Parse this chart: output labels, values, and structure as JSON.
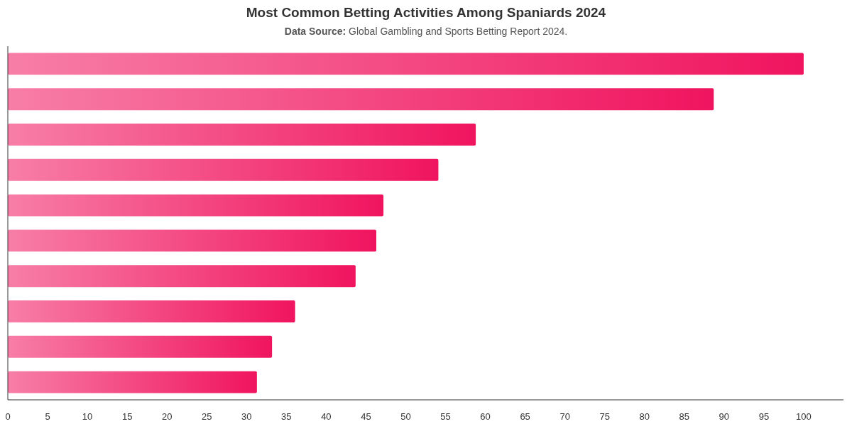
{
  "chart_data": {
    "type": "bar",
    "orientation": "horizontal",
    "title": "Most Common Betting Activities Among Spaniards 2024",
    "subtitle": "Data Source: Global Gambling and Sports Betting Report 2024.",
    "categories": [
      null,
      null,
      null,
      null,
      null,
      null,
      null,
      null,
      null,
      null
    ],
    "values": [
      100,
      88.7,
      58.8,
      54.1,
      47.2,
      46.3,
      43.7,
      36.1,
      33.2,
      31.3
    ],
    "color": "#f0145f",
    "xlim": [
      0,
      105
    ],
    "xticks": [
      0,
      5,
      10,
      15,
      20,
      25,
      30,
      35,
      40,
      45,
      50,
      55,
      60,
      65,
      70,
      75,
      80,
      85,
      90,
      95,
      100
    ],
    "grid": false
  }
}
